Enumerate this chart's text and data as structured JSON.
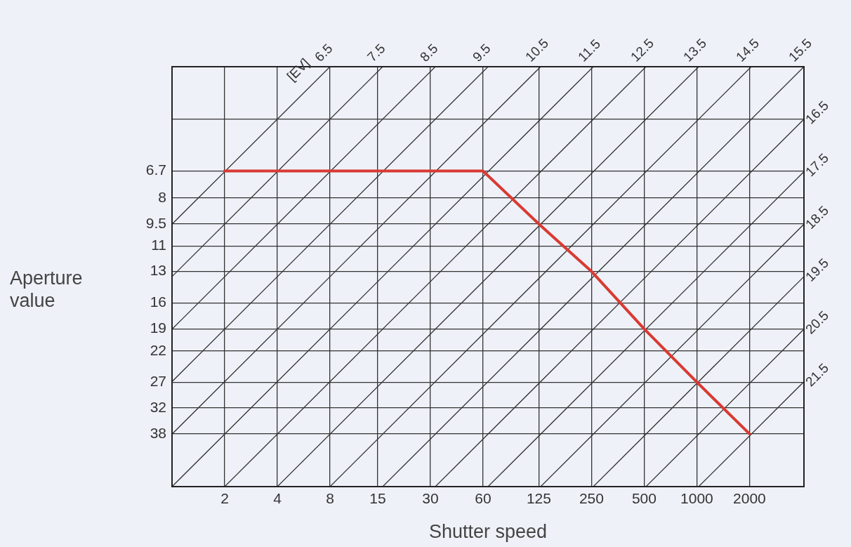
{
  "chart_data": {
    "type": "line",
    "xlabel": "Shutter speed",
    "ylabel": "Aperture value",
    "log": "xy",
    "xlim": [
      1,
      4096
    ],
    "xticks": [
      2,
      4,
      8,
      15,
      30,
      60,
      125,
      250,
      500,
      1000,
      2000
    ],
    "ylim": [
      53.82,
      3.364
    ],
    "yticks": [
      {
        "value": 3.364,
        "label": null
      },
      {
        "value": 4.757,
        "label": null
      },
      6.7,
      8,
      9.5,
      11,
      13,
      16,
      19,
      22,
      27,
      32,
      38
    ],
    "grid": true,
    "legend": false,
    "marker": "none",
    "line_style": "solid",
    "annotations": [
      "[EV]"
    ],
    "series": [
      {
        "name": "6.5",
        "color": "#333333",
        "x": [
          1,
          8
        ],
        "values": [
          9.514,
          3.364
        ]
      },
      {
        "name": "7.5",
        "color": "#333333",
        "x": [
          1,
          16
        ],
        "values": [
          13.45,
          3.364
        ]
      },
      {
        "name": "8.5",
        "color": "#333333",
        "x": [
          1,
          32
        ],
        "values": [
          19.03,
          3.364
        ]
      },
      {
        "name": "9.5",
        "color": "#333333",
        "x": [
          1,
          64
        ],
        "values": [
          26.91,
          3.364
        ]
      },
      {
        "name": "10.5",
        "color": "#333333",
        "x": [
          1,
          128
        ],
        "values": [
          38.05,
          3.364
        ]
      },
      {
        "name": "11.5",
        "color": "#333333",
        "x": [
          1,
          256
        ],
        "values": [
          53.82,
          3.364
        ]
      },
      {
        "name": "12.5",
        "color": "#333333",
        "x": [
          2,
          512
        ],
        "values": [
          53.82,
          3.364
        ]
      },
      {
        "name": "13.5",
        "color": "#333333",
        "x": [
          4,
          1024
        ],
        "values": [
          53.82,
          3.364
        ]
      },
      {
        "name": "14.5",
        "color": "#333333",
        "x": [
          8,
          2048
        ],
        "values": [
          53.82,
          3.364
        ]
      },
      {
        "name": "15.5",
        "color": "#333333",
        "x": [
          16,
          4096
        ],
        "values": [
          53.82,
          3.364
        ]
      },
      {
        "name": "16.5",
        "color": "#333333",
        "x": [
          32,
          4096
        ],
        "values": [
          53.82,
          4.757
        ]
      },
      {
        "name": "17.5",
        "color": "#333333",
        "x": [
          64,
          4096
        ],
        "values": [
          53.82,
          6.727
        ]
      },
      {
        "name": "18.5",
        "color": "#333333",
        "x": [
          128,
          4096
        ],
        "values": [
          53.82,
          9.514
        ]
      },
      {
        "name": "19.5",
        "color": "#333333",
        "x": [
          256,
          4096
        ],
        "values": [
          53.82,
          13.45
        ]
      },
      {
        "name": "20.5",
        "color": "#333333",
        "x": [
          512,
          4096
        ],
        "values": [
          53.82,
          19.03
        ]
      },
      {
        "name": "21.5",
        "color": "#333333",
        "x": [
          1024,
          4096
        ],
        "values": [
          53.82,
          26.91
        ]
      },
      {
        "color": "#d93a32",
        "x": [
          2,
          4,
          8,
          15,
          30,
          60,
          125,
          250,
          500,
          1000,
          2000
        ],
        "values": [
          6.7,
          6.7,
          6.7,
          6.7,
          6.7,
          6.7,
          9.5,
          13,
          19,
          27,
          38
        ]
      }
    ]
  }
}
